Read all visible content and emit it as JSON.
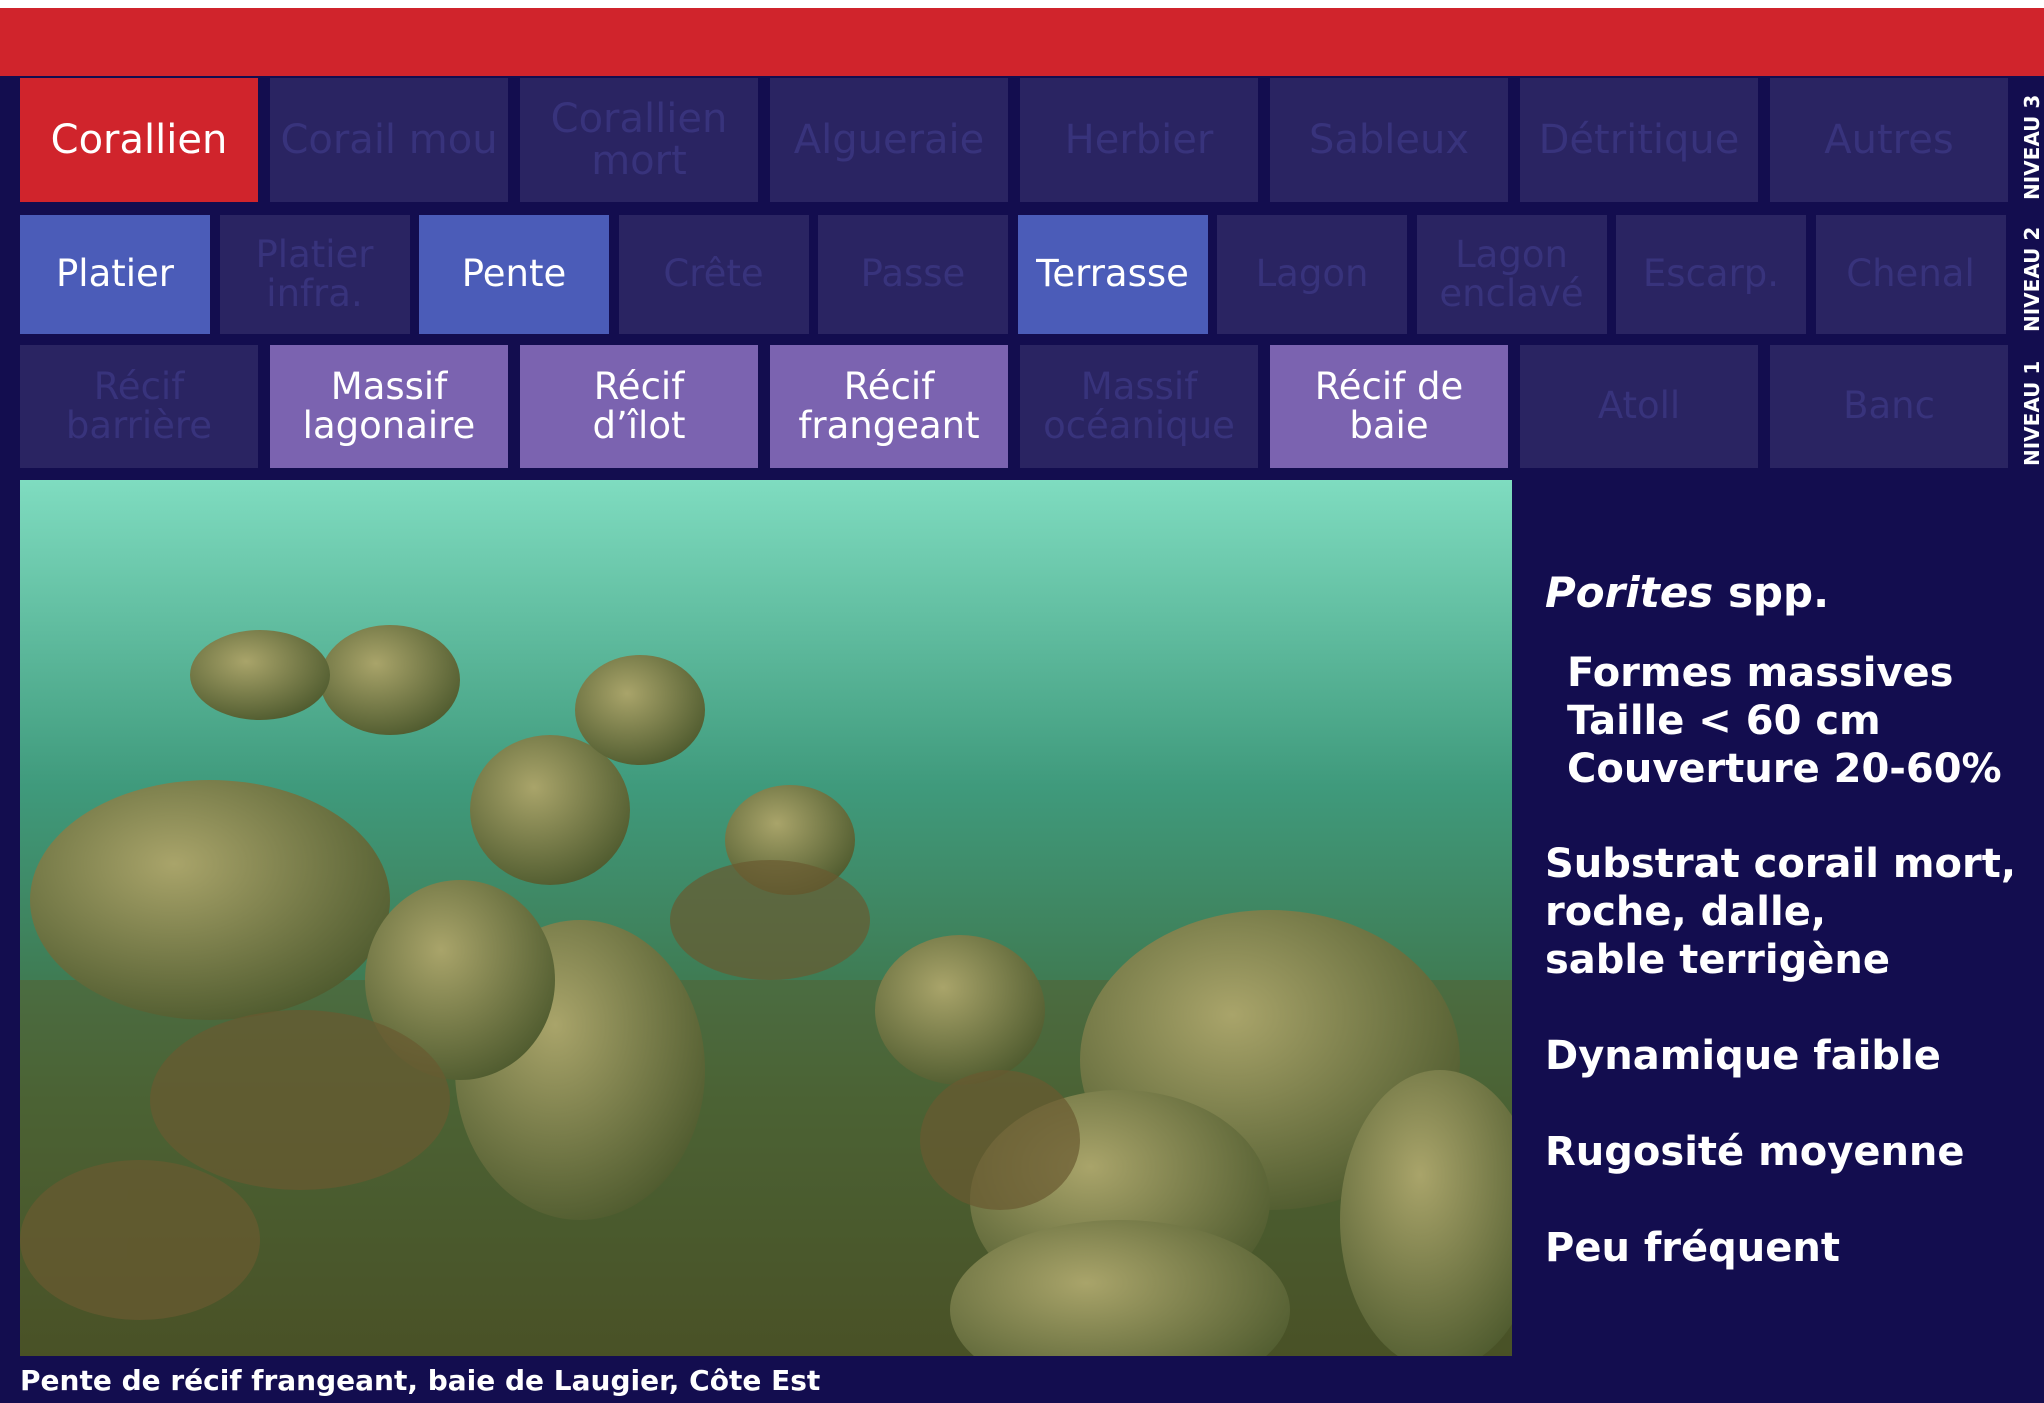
{
  "levels": [
    {
      "name": "NIVEAU 3",
      "items": [
        {
          "lines": [
            "Corallien"
          ],
          "active": true
        },
        {
          "lines": [
            "Corail mou"
          ],
          "active": false
        },
        {
          "lines": [
            "Corallien",
            "mort"
          ],
          "active": false
        },
        {
          "lines": [
            "Algueraie"
          ],
          "active": false
        },
        {
          "lines": [
            "Herbier"
          ],
          "active": false
        },
        {
          "lines": [
            "Sableux"
          ],
          "active": false
        },
        {
          "lines": [
            "Détritique"
          ],
          "active": false
        },
        {
          "lines": [
            "Autres"
          ],
          "active": false
        }
      ]
    },
    {
      "name": "NIVEAU 2",
      "items": [
        {
          "lines": [
            "Platier"
          ],
          "active": true
        },
        {
          "lines": [
            "Platier",
            "infra."
          ],
          "active": false
        },
        {
          "lines": [
            "Pente"
          ],
          "active": true
        },
        {
          "lines": [
            "Crête"
          ],
          "active": false
        },
        {
          "lines": [
            "Passe"
          ],
          "active": false
        },
        {
          "lines": [
            "Terrasse"
          ],
          "active": true
        },
        {
          "lines": [
            "Lagon"
          ],
          "active": false
        },
        {
          "lines": [
            "Lagon",
            "enclavé"
          ],
          "active": false
        },
        {
          "lines": [
            "Escarp."
          ],
          "active": false
        },
        {
          "lines": [
            "Chenal"
          ],
          "active": false
        }
      ]
    },
    {
      "name": "NIVEAU 1",
      "items": [
        {
          "lines": [
            "Récif",
            "barrière"
          ],
          "active": false
        },
        {
          "lines": [
            "Massif",
            "lagonaire"
          ],
          "active": true
        },
        {
          "lines": [
            "Récif",
            "d’îlot"
          ],
          "active": true
        },
        {
          "lines": [
            "Récif",
            "frangeant"
          ],
          "active": true
        },
        {
          "lines": [
            "Massif",
            "océanique"
          ],
          "active": false
        },
        {
          "lines": [
            "Récif de",
            "baie"
          ],
          "active": true
        },
        {
          "lines": [
            "Atoll"
          ],
          "active": false
        },
        {
          "lines": [
            "Banc"
          ],
          "active": false
        }
      ]
    }
  ],
  "species": {
    "genus": "Porites",
    "suffix": "spp."
  },
  "traits": [
    "Formes massives",
    "Taille < 60 cm",
    "Couverture 20-60%"
  ],
  "substrate": [
    "Substrat corail mort,",
    "roche, dalle,",
    "sable terrigène"
  ],
  "dynamics": "Dynamique faible",
  "roughness": "Rugosité moyenne",
  "frequency": "Peu fréquent",
  "caption": "Pente de récif frangeant, baie de Laugier, Côte Est"
}
